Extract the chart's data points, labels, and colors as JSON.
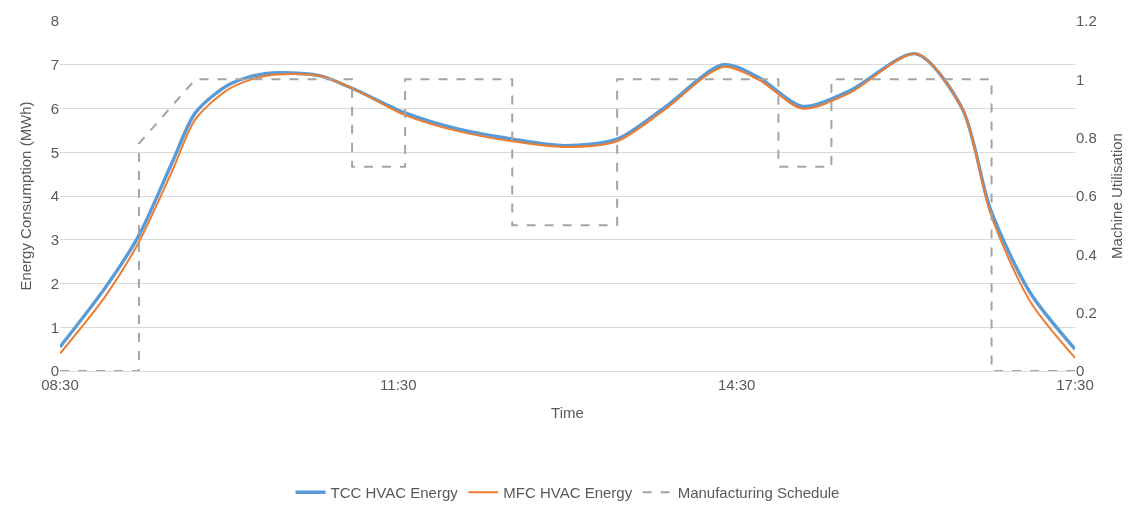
{
  "chart_data": {
    "type": "line",
    "xlabel": "Time",
    "ylabel": "Energy Consumption (MWh)",
    "y2label": "Machine Utilisation",
    "xlim": [
      8.5,
      17.5
    ],
    "xticks": [
      {
        "value": 8.5,
        "label": "08:30"
      },
      {
        "value": 11.5,
        "label": "11:30"
      },
      {
        "value": 14.5,
        "label": "14:30"
      },
      {
        "value": 17.5,
        "label": "17:30"
      }
    ],
    "ylim": [
      0,
      8
    ],
    "yticks": [
      0,
      1,
      2,
      3,
      4,
      5,
      6,
      7,
      8
    ],
    "y2lim": [
      0,
      1.2
    ],
    "y2ticks": [
      0,
      0.2,
      0.4,
      0.6,
      0.8,
      1,
      1.2
    ],
    "grid": "y",
    "legend": "bottom",
    "marker": "none",
    "series": [
      {
        "name": "TCC HVAC Energy",
        "color": "#5b9bd5",
        "line_style": "solid",
        "x": [
          8.5,
          8.9,
          9.2,
          9.5,
          9.7,
          10.0,
          10.33,
          10.8,
          11.1,
          11.56,
          12.0,
          12.51,
          12.97,
          13.44,
          13.85,
          14.38,
          14.7,
          15.08,
          15.5,
          16.09,
          16.5,
          16.75,
          17.1,
          17.5
        ],
        "values": [
          0.55,
          1.9,
          3.1,
          4.8,
          5.9,
          6.55,
          6.8,
          6.75,
          6.45,
          5.9,
          5.55,
          5.3,
          5.15,
          5.3,
          6.0,
          7.0,
          6.7,
          6.05,
          6.4,
          7.25,
          6.0,
          3.7,
          1.8,
          0.5
        ]
      },
      {
        "name": "MFC HVAC Energy",
        "color": "#ed7d31",
        "line_style": "solid",
        "x": [
          8.5,
          8.9,
          9.2,
          9.5,
          9.7,
          10.0,
          10.33,
          10.8,
          11.1,
          11.56,
          12.0,
          12.51,
          12.97,
          13.44,
          13.85,
          14.38,
          14.7,
          15.08,
          15.5,
          16.09,
          16.5,
          16.75,
          17.1,
          17.5
        ],
        "values": [
          0.4,
          1.7,
          2.95,
          4.6,
          5.75,
          6.45,
          6.75,
          6.75,
          6.45,
          5.85,
          5.5,
          5.25,
          5.12,
          5.25,
          5.95,
          6.95,
          6.65,
          6.0,
          6.35,
          7.25,
          6.0,
          3.6,
          1.6,
          0.3
        ]
      },
      {
        "name": "Manufacturing Schedule",
        "color": "#a5a5a5",
        "line_style": "dashed",
        "axis": "y2",
        "x": [
          8.5,
          9.2,
          9.2,
          9.7,
          11.09,
          11.09,
          11.56,
          11.56,
          12.51,
          12.51,
          13.44,
          13.44,
          14.87,
          14.87,
          15.34,
          15.34,
          16.76,
          16.76,
          17.5
        ],
        "values": [
          0,
          0,
          0.78,
          1,
          1,
          0.7,
          0.7,
          1,
          1,
          0.5,
          0.5,
          1,
          1,
          0.7,
          0.7,
          1,
          1,
          0,
          0
        ]
      }
    ]
  }
}
